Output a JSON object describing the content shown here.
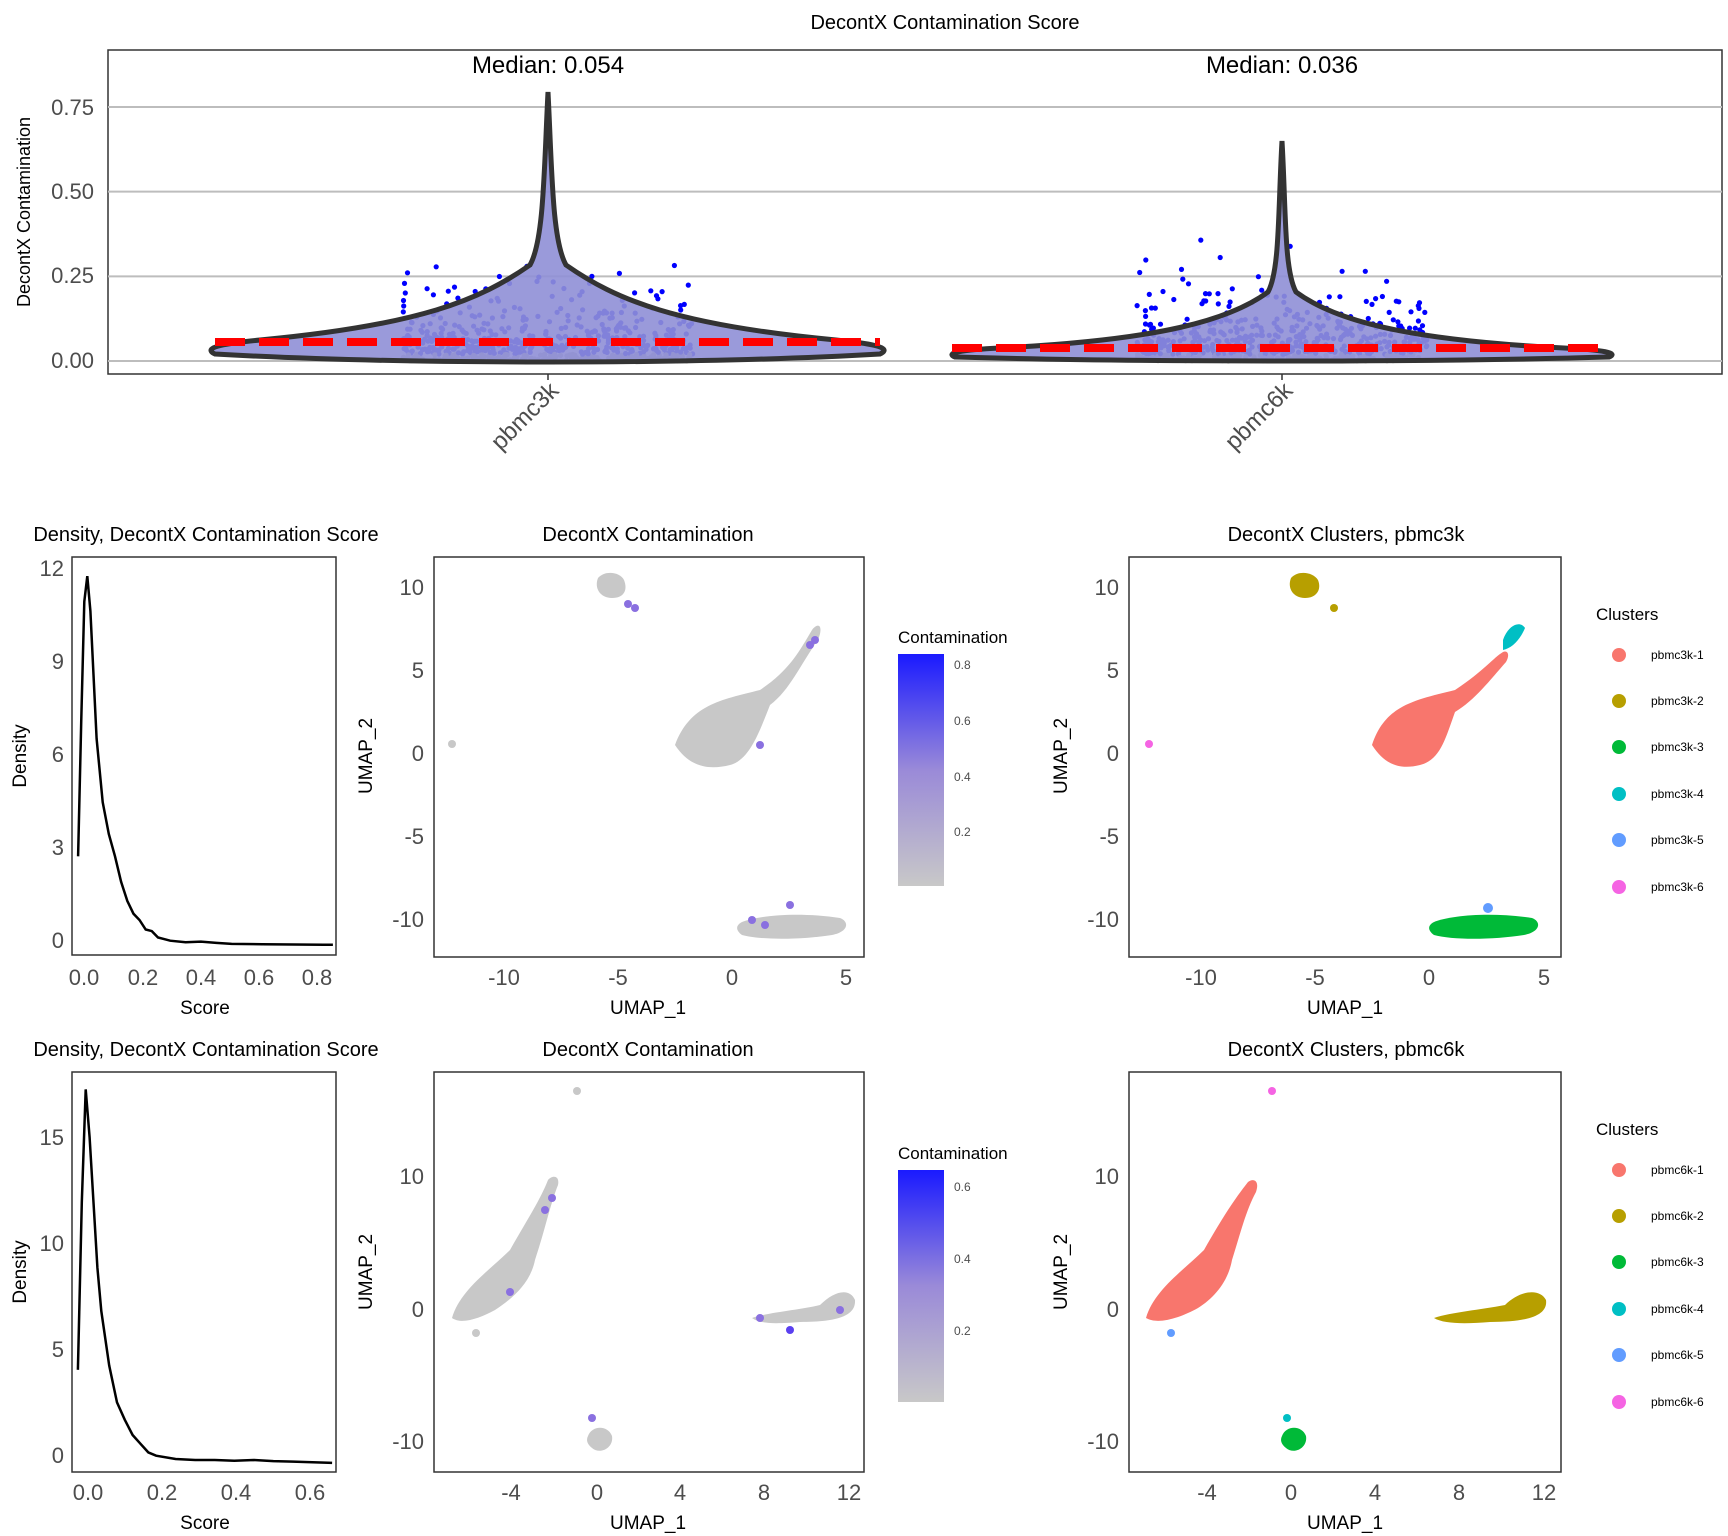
{
  "figure": {
    "violin": {
      "title": "DecontX Contamination Score",
      "ylabel": "DecontX Contamination",
      "yticks": [
        "0.00",
        "0.25",
        "0.50",
        "0.75"
      ],
      "groups": [
        "pbmc3k",
        "pbmc6k"
      ],
      "medians": [
        "Median: 0.054",
        "Median: 0.036"
      ]
    },
    "panels": [
      {
        "density_title": "Density, DecontX Contamination Score",
        "density_xlabel": "Score",
        "density_ylabel": "Density",
        "density_xticks": [
          "0.0",
          "0.2",
          "0.4",
          "0.6",
          "0.8"
        ],
        "density_yticks": [
          "0",
          "3",
          "6",
          "9",
          "12"
        ],
        "umap_title": "DecontX Contamination",
        "umap_xlabel": "UMAP_1",
        "umap_ylabel": "UMAP_2",
        "umap_xticks": [
          "-10",
          "-5",
          "0",
          "5"
        ],
        "umap_yticks": [
          "-10",
          "-5",
          "0",
          "5",
          "10"
        ],
        "colorbar_title": "Contamination",
        "colorbar_ticks": [
          "0.2",
          "0.4",
          "0.6",
          "0.8"
        ],
        "clusters_title": "DecontX Clusters, pbmc3k",
        "legend_title": "Clusters",
        "legend": [
          "pbmc3k-1",
          "pbmc3k-2",
          "pbmc3k-3",
          "pbmc3k-4",
          "pbmc3k-5",
          "pbmc3k-6"
        ]
      },
      {
        "density_title": "Density, DecontX Contamination Score",
        "density_xlabel": "Score",
        "density_ylabel": "Density",
        "density_xticks": [
          "0.0",
          "0.2",
          "0.4",
          "0.6"
        ],
        "density_yticks": [
          "0",
          "5",
          "10",
          "15"
        ],
        "umap_title": "DecontX Contamination",
        "umap_xlabel": "UMAP_1",
        "umap_ylabel": "UMAP_2",
        "umap_xticks": [
          "-4",
          "0",
          "4",
          "8",
          "12"
        ],
        "umap_yticks": [
          "-10",
          "0",
          "10"
        ],
        "colorbar_title": "Contamination",
        "colorbar_ticks": [
          "0.2",
          "0.4",
          "0.6"
        ],
        "clusters_title": "DecontX Clusters, pbmc6k",
        "legend_title": "Clusters",
        "legend": [
          "pbmc6k-1",
          "pbmc6k-2",
          "pbmc6k-3",
          "pbmc6k-4",
          "pbmc6k-5",
          "pbmc6k-6"
        ]
      }
    ],
    "colors": {
      "points": "#0000ff",
      "violin_fill": "#8f8fd6",
      "median_line": "#ff0000",
      "grey": "#c8c8c8",
      "cluster_palette": [
        "#f8766d",
        "#b79f00",
        "#00ba38",
        "#00bfc4",
        "#619cff",
        "#f564e3"
      ]
    }
  },
  "chart_data": [
    {
      "type": "violin",
      "title": "DecontX Contamination Score",
      "ylabel": "DecontX Contamination",
      "ylim": [
        -0.04,
        0.84
      ],
      "categories": [
        "pbmc3k",
        "pbmc6k"
      ],
      "medians": [
        0.054,
        0.036
      ],
      "max": [
        0.83,
        0.65
      ],
      "grid": "horizontal"
    },
    {
      "type": "line",
      "title": "Density, DecontX Contamination Score",
      "xlabel": "Score",
      "ylabel": "Density",
      "xlim": [
        -0.02,
        0.84
      ],
      "ylim": [
        -0.3,
        12.2
      ],
      "x": [
        0.0,
        0.01,
        0.02,
        0.03,
        0.04,
        0.05,
        0.06,
        0.08,
        0.1,
        0.12,
        0.14,
        0.16,
        0.18,
        0.2,
        0.22,
        0.24,
        0.26,
        0.28,
        0.3,
        0.35,
        0.4,
        0.45,
        0.5,
        0.6,
        0.7,
        0.8,
        0.83
      ],
      "y": [
        2.8,
        7.0,
        10.8,
        11.6,
        10.5,
        8.5,
        6.5,
        4.5,
        3.5,
        2.8,
        2.0,
        1.4,
        1.0,
        0.8,
        0.5,
        0.45,
        0.25,
        0.2,
        0.15,
        0.1,
        0.12,
        0.08,
        0.05,
        0.04,
        0.03,
        0.02,
        0.02
      ]
    },
    {
      "type": "scatter",
      "title": "DecontX Contamination",
      "xlabel": "UMAP_1",
      "ylabel": "UMAP_2",
      "xlim": [
        -13,
        5.8
      ],
      "ylim": [
        -12.1,
        11.8
      ],
      "clusters": [
        {
          "name": "pbmc3k-1",
          "x": [
            -2,
            3.6
          ],
          "y": [
            0,
            6
          ]
        },
        {
          "name": "pbmc3k-2",
          "x": [
            -6,
            -4.5
          ],
          "y": [
            9,
            10.5
          ]
        },
        {
          "name": "pbmc3k-3",
          "x": [
            0.3,
            4.8
          ],
          "y": [
            -11,
            -10
          ]
        },
        {
          "name": "pbmc3k-4",
          "x": [
            3,
            4
          ],
          "y": [
            6,
            7.7
          ]
        },
        {
          "name": "pbmc3k-5",
          "x": [
            2.5,
            2.5
          ],
          "y": [
            -9.1,
            -9.1
          ]
        },
        {
          "name": "pbmc3k-6",
          "x": [
            -12.5,
            -12.5
          ],
          "y": [
            0.6,
            0.6
          ]
        }
      ]
    },
    {
      "type": "scatter",
      "title": "DecontX Clusters, pbmc3k",
      "xlabel": "UMAP_1",
      "ylabel": "UMAP_2",
      "legend": [
        "pbmc3k-1",
        "pbmc3k-2",
        "pbmc3k-3",
        "pbmc3k-4",
        "pbmc3k-5",
        "pbmc3k-6"
      ]
    },
    {
      "type": "line",
      "title": "Density, DecontX Contamination Score",
      "xlabel": "Score",
      "ylabel": "Density",
      "xlim": [
        -0.015,
        0.66
      ],
      "ylim": [
        -0.4,
        18
      ],
      "x": [
        0.0,
        0.01,
        0.02,
        0.03,
        0.04,
        0.05,
        0.06,
        0.08,
        0.1,
        0.12,
        0.14,
        0.16,
        0.18,
        0.2,
        0.25,
        0.3,
        0.35,
        0.4,
        0.45,
        0.5,
        0.55,
        0.6,
        0.65
      ],
      "y": [
        4.3,
        12.0,
        17.2,
        15.0,
        12.0,
        9.0,
        7.0,
        4.5,
        2.8,
        2.0,
        1.3,
        0.9,
        0.5,
        0.35,
        0.2,
        0.15,
        0.15,
        0.12,
        0.15,
        0.1,
        0.08,
        0.05,
        0.02
      ]
    },
    {
      "type": "scatter",
      "title": "DecontX Contamination",
      "xlabel": "UMAP_1",
      "ylabel": "UMAP_2",
      "xlim": [
        -6.8,
        12.8
      ],
      "ylim": [
        -12.4,
        17.8
      ],
      "clusters": [
        {
          "name": "pbmc6k-1",
          "x": [
            -6.8,
            -2
          ],
          "y": [
            -1,
            9.5
          ]
        },
        {
          "name": "pbmc6k-2",
          "x": [
            7,
            12
          ],
          "y": [
            -1,
            1.5
          ]
        },
        {
          "name": "pbmc6k-3",
          "x": [
            -0.3,
            0.6
          ],
          "y": [
            -11,
            -9
          ]
        },
        {
          "name": "pbmc6k-4",
          "x": [
            -0.2,
            -0.2
          ],
          "y": [
            -8.3,
            -8.3
          ]
        },
        {
          "name": "pbmc6k-5",
          "x": [
            -5.6,
            -5.6
          ],
          "y": [
            -1.8,
            -1.8
          ]
        },
        {
          "name": "pbmc6k-6",
          "x": [
            -0.9,
            -0.9
          ],
          "y": [
            16.4,
            16.4
          ]
        }
      ]
    },
    {
      "type": "scatter",
      "title": "DecontX Clusters, pbmc6k",
      "xlabel": "UMAP_1",
      "ylabel": "UMAP_2",
      "legend": [
        "pbmc6k-1",
        "pbmc6k-2",
        "pbmc6k-3",
        "pbmc6k-4",
        "pbmc6k-5",
        "pbmc6k-6"
      ]
    }
  ]
}
